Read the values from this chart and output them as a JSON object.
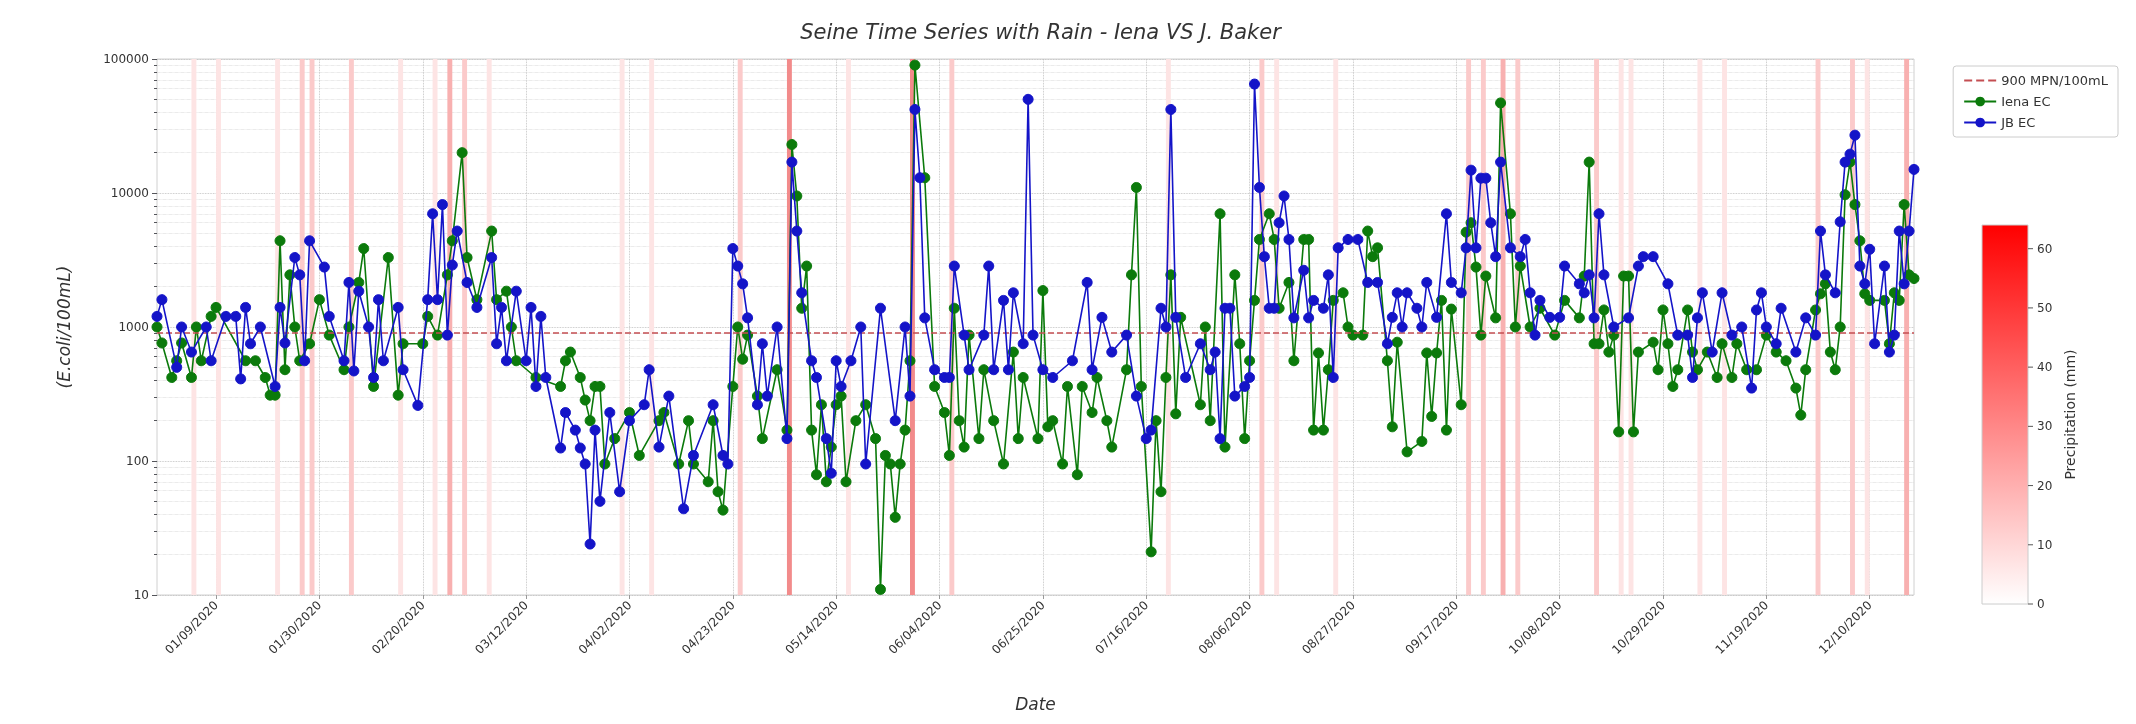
{
  "chart_data": {
    "type": "line",
    "title": "Seine Time Series with Rain - Iena VS J. Baker",
    "xlabel": "Date",
    "ylabel": "(E.coli/100mL)",
    "clabel": "Precipitation (mm)",
    "clim": [
      0,
      64
    ],
    "cticks": [
      0,
      10,
      20,
      30,
      40,
      50,
      60
    ],
    "log": "y",
    "grid": true,
    "legend": "top right",
    "marker": "circle",
    "line_style": "solid",
    "xlim": [
      "2019-12-28",
      "2020-12-19"
    ],
    "xticks": [
      {
        "value": "2020-01-09",
        "label": "01/09/2020"
      },
      {
        "value": "2020-01-30",
        "label": "01/30/2020"
      },
      {
        "value": "2020-02-20",
        "label": "02/20/2020"
      },
      {
        "value": "2020-03-12",
        "label": "03/12/2020"
      },
      {
        "value": "2020-04-02",
        "label": "04/02/2020"
      },
      {
        "value": "2020-04-23",
        "label": "04/23/2020"
      },
      {
        "value": "2020-05-14",
        "label": "05/14/2020"
      },
      {
        "value": "2020-06-04",
        "label": "06/04/2020"
      },
      {
        "value": "2020-06-25",
        "label": "06/25/2020"
      },
      {
        "value": "2020-07-16",
        "label": "07/16/2020"
      },
      {
        "value": "2020-08-06",
        "label": "08/06/2020"
      },
      {
        "value": "2020-08-27",
        "label": "08/27/2020"
      },
      {
        "value": "2020-09-17",
        "label": "09/17/2020"
      },
      {
        "value": "2020-10-08",
        "label": "10/08/2020"
      },
      {
        "value": "2020-10-29",
        "label": "10/29/2020"
      },
      {
        "value": "2020-11-19",
        "label": "11/19/2020"
      },
      {
        "value": "2020-12-10",
        "label": "12/10/2020"
      }
    ],
    "ylim": [
      10,
      100000
    ],
    "yticks": [
      10,
      100,
      1000,
      10000,
      100000
    ],
    "ref_lines": [
      {
        "axis": "y",
        "value": 900,
        "label": "900 MPN/100mL",
        "color": "#c44e52",
        "line_style": "dashed"
      }
    ],
    "bands": [
      {
        "axis": "x",
        "from": "2020-01-04",
        "to": "2020-01-05",
        "color": "#fde4e4"
      },
      {
        "axis": "x",
        "from": "2020-01-09",
        "to": "2020-01-10",
        "color": "#fde4e4"
      },
      {
        "axis": "x",
        "from": "2020-01-21",
        "to": "2020-01-22",
        "color": "#fde4e4"
      },
      {
        "axis": "x",
        "from": "2020-01-26",
        "to": "2020-01-27",
        "color": "#fbcaca"
      },
      {
        "axis": "x",
        "from": "2020-01-28",
        "to": "2020-01-29",
        "color": "#fbcaca"
      },
      {
        "axis": "x",
        "from": "2020-02-05",
        "to": "2020-02-06",
        "color": "#fbcaca"
      },
      {
        "axis": "x",
        "from": "2020-02-15",
        "to": "2020-02-16",
        "color": "#fde4e4"
      },
      {
        "axis": "x",
        "from": "2020-02-22",
        "to": "2020-02-23",
        "color": "#fde4e4"
      },
      {
        "axis": "x",
        "from": "2020-02-25",
        "to": "2020-02-26",
        "color": "#f8b0b0"
      },
      {
        "axis": "x",
        "from": "2020-02-28",
        "to": "2020-02-29",
        "color": "#fbcaca"
      },
      {
        "axis": "x",
        "from": "2020-03-04",
        "to": "2020-03-05",
        "color": "#fde4e4"
      },
      {
        "axis": "x",
        "from": "2020-03-31",
        "to": "2020-04-01",
        "color": "#fde4e4"
      },
      {
        "axis": "x",
        "from": "2020-04-06",
        "to": "2020-04-07",
        "color": "#fde4e4"
      },
      {
        "axis": "x",
        "from": "2020-04-24",
        "to": "2020-04-25",
        "color": "#fbcaca"
      },
      {
        "axis": "x",
        "from": "2020-05-04",
        "to": "2020-05-05",
        "color": "#f28b8b"
      },
      {
        "axis": "x",
        "from": "2020-05-16",
        "to": "2020-05-17",
        "color": "#fde4e4"
      },
      {
        "axis": "x",
        "from": "2020-05-29",
        "to": "2020-05-30",
        "color": "#f28b8b"
      },
      {
        "axis": "x",
        "from": "2020-06-06",
        "to": "2020-06-07",
        "color": "#fbcaca"
      },
      {
        "axis": "x",
        "from": "2020-07-20",
        "to": "2020-07-21",
        "color": "#fde4e4"
      },
      {
        "axis": "x",
        "from": "2020-08-08",
        "to": "2020-08-09",
        "color": "#fbcaca"
      },
      {
        "axis": "x",
        "from": "2020-08-11",
        "to": "2020-08-12",
        "color": "#fde4e4"
      },
      {
        "axis": "x",
        "from": "2020-08-23",
        "to": "2020-08-24",
        "color": "#fde4e4"
      },
      {
        "axis": "x",
        "from": "2020-09-19",
        "to": "2020-09-20",
        "color": "#fbcaca"
      },
      {
        "axis": "x",
        "from": "2020-09-22",
        "to": "2020-09-23",
        "color": "#fbcaca"
      },
      {
        "axis": "x",
        "from": "2020-09-26",
        "to": "2020-09-27",
        "color": "#f8b0b0"
      },
      {
        "axis": "x",
        "from": "2020-09-29",
        "to": "2020-09-30",
        "color": "#fbcaca"
      },
      {
        "axis": "x",
        "from": "2020-10-15",
        "to": "2020-10-16",
        "color": "#fbcaca"
      },
      {
        "axis": "x",
        "from": "2020-10-20",
        "to": "2020-10-21",
        "color": "#fde4e4"
      },
      {
        "axis": "x",
        "from": "2020-10-22",
        "to": "2020-10-23",
        "color": "#fde4e4"
      },
      {
        "axis": "x",
        "from": "2020-11-05",
        "to": "2020-11-06",
        "color": "#fde4e4"
      },
      {
        "axis": "x",
        "from": "2020-11-10",
        "to": "2020-11-11",
        "color": "#fde4e4"
      },
      {
        "axis": "x",
        "from": "2020-11-29",
        "to": "2020-11-30",
        "color": "#fbcaca"
      },
      {
        "axis": "x",
        "from": "2020-12-06",
        "to": "2020-12-07",
        "color": "#fbcaca"
      },
      {
        "axis": "x",
        "from": "2020-12-09",
        "to": "2020-12-10",
        "color": "#fde4e4"
      },
      {
        "axis": "x",
        "from": "2020-12-17",
        "to": "2020-12-18",
        "color": "#f8b0b0"
      }
    ],
    "series": [
      {
        "name": "Iena EC",
        "color": "#0b7a0b",
        "x": [
          "2019-12-28",
          "2019-12-29",
          "2019-12-31",
          "2020-01-01",
          "2020-01-02",
          "2020-01-04",
          "2020-01-05",
          "2020-01-06",
          "2020-01-08",
          "2020-01-09",
          "2020-01-15",
          "2020-01-17",
          "2020-01-19",
          "2020-01-20",
          "2020-01-21",
          "2020-01-22",
          "2020-01-23",
          "2020-01-24",
          "2020-01-25",
          "2020-01-26",
          "2020-01-28",
          "2020-01-30",
          "2020-02-01",
          "2020-02-04",
          "2020-02-05",
          "2020-02-07",
          "2020-02-08",
          "2020-02-10",
          "2020-02-13",
          "2020-02-15",
          "2020-02-16",
          "2020-02-20",
          "2020-02-21",
          "2020-02-23",
          "2020-02-25",
          "2020-02-26",
          "2020-02-28",
          "2020-02-29",
          "2020-03-02",
          "2020-03-05",
          "2020-03-06",
          "2020-03-08",
          "2020-03-09",
          "2020-03-10",
          "2020-03-14",
          "2020-03-19",
          "2020-03-20",
          "2020-03-21",
          "2020-03-23",
          "2020-03-24",
          "2020-03-25",
          "2020-03-26",
          "2020-03-27",
          "2020-03-28",
          "2020-03-30",
          "2020-04-02",
          "2020-04-04",
          "2020-04-08",
          "2020-04-09",
          "2020-04-12",
          "2020-04-14",
          "2020-04-15",
          "2020-04-18",
          "2020-04-19",
          "2020-04-20",
          "2020-04-21",
          "2020-04-23",
          "2020-04-24",
          "2020-04-25",
          "2020-04-26",
          "2020-04-28",
          "2020-04-29",
          "2020-05-02",
          "2020-05-04",
          "2020-05-05",
          "2020-05-06",
          "2020-05-07",
          "2020-05-08",
          "2020-05-09",
          "2020-05-10",
          "2020-05-11",
          "2020-05-12",
          "2020-05-13",
          "2020-05-14",
          "2020-05-15",
          "2020-05-16",
          "2020-05-18",
          "2020-05-20",
          "2020-05-22",
          "2020-05-23",
          "2020-05-24",
          "2020-05-25",
          "2020-05-26",
          "2020-05-27",
          "2020-05-28",
          "2020-05-29",
          "2020-05-30",
          "2020-06-01",
          "2020-06-03",
          "2020-06-05",
          "2020-06-06",
          "2020-06-07",
          "2020-06-08",
          "2020-06-09",
          "2020-06-10",
          "2020-06-12",
          "2020-06-13",
          "2020-06-15",
          "2020-06-17",
          "2020-06-19",
          "2020-06-20",
          "2020-06-21",
          "2020-06-24",
          "2020-06-25",
          "2020-06-26",
          "2020-06-27",
          "2020-06-29",
          "2020-06-30",
          "2020-07-02",
          "2020-07-03",
          "2020-07-05",
          "2020-07-06",
          "2020-07-08",
          "2020-07-09",
          "2020-07-12",
          "2020-07-13",
          "2020-07-14",
          "2020-07-15",
          "2020-07-17",
          "2020-07-18",
          "2020-07-19",
          "2020-07-20",
          "2020-07-21",
          "2020-07-22",
          "2020-07-23",
          "2020-07-27",
          "2020-07-28",
          "2020-07-29",
          "2020-07-31",
          "2020-08-01",
          "2020-08-03",
          "2020-08-04",
          "2020-08-05",
          "2020-08-06",
          "2020-08-07",
          "2020-08-08",
          "2020-08-10",
          "2020-08-11",
          "2020-08-12",
          "2020-08-14",
          "2020-08-15",
          "2020-08-17",
          "2020-08-18",
          "2020-08-19",
          "2020-08-20",
          "2020-08-21",
          "2020-08-22",
          "2020-08-23",
          "2020-08-25",
          "2020-08-26",
          "2020-08-27",
          "2020-08-29",
          "2020-08-30",
          "2020-08-31",
          "2020-09-01",
          "2020-09-03",
          "2020-09-04",
          "2020-09-05",
          "2020-09-07",
          "2020-09-10",
          "2020-09-11",
          "2020-09-12",
          "2020-09-13",
          "2020-09-14",
          "2020-09-15",
          "2020-09-16",
          "2020-09-18",
          "2020-09-19",
          "2020-09-20",
          "2020-09-21",
          "2020-09-22",
          "2020-09-23",
          "2020-09-25",
          "2020-09-26",
          "2020-09-28",
          "2020-09-29",
          "2020-09-30",
          "2020-10-02",
          "2020-10-04",
          "2020-10-07",
          "2020-10-09",
          "2020-10-12",
          "2020-10-13",
          "2020-10-14",
          "2020-10-15",
          "2020-10-16",
          "2020-10-17",
          "2020-10-18",
          "2020-10-19",
          "2020-10-20",
          "2020-10-21",
          "2020-10-22",
          "2020-10-23",
          "2020-10-24",
          "2020-10-27",
          "2020-10-28",
          "2020-10-29",
          "2020-10-30",
          "2020-10-31",
          "2020-11-01",
          "2020-11-03",
          "2020-11-04",
          "2020-11-05",
          "2020-11-07",
          "2020-11-09",
          "2020-11-10",
          "2020-11-12",
          "2020-11-13",
          "2020-11-15",
          "2020-11-17",
          "2020-11-19",
          "2020-11-21",
          "2020-11-23",
          "2020-11-25",
          "2020-11-26",
          "2020-11-27",
          "2020-11-29",
          "2020-11-30",
          "2020-12-01",
          "2020-12-02",
          "2020-12-03",
          "2020-12-04",
          "2020-12-05",
          "2020-12-06",
          "2020-12-07",
          "2020-12-08",
          "2020-12-09",
          "2020-12-10",
          "2020-12-13",
          "2020-12-14",
          "2020-12-15",
          "2020-12-16",
          "2020-12-17",
          "2020-12-18",
          "2020-12-19"
        ],
        "values": [
          1000,
          760,
          420,
          560,
          760,
          420,
          1000,
          560,
          1200,
          1400,
          560,
          560,
          420,
          310,
          310,
          4400,
          480,
          2450,
          1000,
          560,
          750,
          1600,
          870,
          480,
          1000,
          2150,
          3850,
          360,
          3300,
          310,
          750,
          750,
          1200,
          870,
          2450,
          4400,
          20000,
          3300,
          1600,
          5200,
          1600,
          1850,
          1000,
          560,
          420,
          360,
          560,
          650,
          420,
          285,
          200,
          360,
          360,
          95,
          147,
          230,
          110,
          200,
          230,
          95,
          200,
          95,
          70,
          200,
          59,
          43,
          360,
          1000,
          575,
          870,
          305,
          147,
          480,
          170,
          23000,
          9500,
          1380,
          2850,
          170,
          79,
          263,
          70,
          127,
          263,
          305,
          70,
          200,
          263,
          147,
          11,
          110,
          95,
          38,
          95,
          170,
          560,
          90000,
          13000,
          360,
          230,
          110,
          1380,
          200,
          127,
          870,
          147,
          480,
          200,
          95,
          650,
          147,
          420,
          147,
          1870,
          180,
          200,
          95,
          360,
          79,
          360,
          230,
          420,
          200,
          127,
          480,
          2450,
          11000,
          360,
          21,
          200,
          59,
          420,
          2450,
          225,
          1180,
          263,
          1000,
          200,
          7000,
          127,
          2450,
          750,
          147,
          560,
          1580,
          4500,
          7000,
          4500,
          1380,
          2150,
          560,
          4500,
          4500,
          170,
          640,
          170,
          480,
          1580,
          1800,
          1000,
          870,
          870,
          5200,
          3350,
          3900,
          560,
          180,
          770,
          117,
          140,
          640,
          215,
          640,
          1580,
          170,
          1360,
          263,
          5100,
          6000,
          2800,
          870,
          2400,
          1170,
          47000,
          7000,
          1000,
          2850,
          1000,
          1380,
          870,
          1580,
          1170,
          2400,
          17000,
          750,
          750,
          1340,
          650,
          870,
          165,
          2400,
          2400,
          165,
          650,
          770,
          480,
          1340,
          750,
          360,
          480,
          1340,
          650,
          480,
          650,
          420,
          750,
          420,
          750,
          480,
          480,
          870,
          650,
          560,
          350,
          220,
          480,
          1340,
          1770,
          2100,
          650,
          480,
          1000,
          9700,
          17000,
          8200,
          4400,
          1770,
          1580,
          1580,
          750,
          1800,
          1580,
          8200,
          2450,
          2300
        ]
      },
      {
        "name": "JB EC",
        "color": "#1414c8",
        "x": [
          "2019-12-28",
          "2019-12-29",
          "2020-01-01",
          "2020-01-02",
          "2020-01-04",
          "2020-01-07",
          "2020-01-08",
          "2020-01-11",
          "2020-01-13",
          "2020-01-14",
          "2020-01-15",
          "2020-01-16",
          "2020-01-18",
          "2020-01-21",
          "2020-01-22",
          "2020-01-23",
          "2020-01-25",
          "2020-01-26",
          "2020-01-27",
          "2020-01-28",
          "2020-01-31",
          "2020-02-01",
          "2020-02-04",
          "2020-02-05",
          "2020-02-06",
          "2020-02-07",
          "2020-02-09",
          "2020-02-10",
          "2020-02-11",
          "2020-02-12",
          "2020-02-15",
          "2020-02-16",
          "2020-02-19",
          "2020-02-21",
          "2020-02-22",
          "2020-02-23",
          "2020-02-24",
          "2020-02-25",
          "2020-02-26",
          "2020-02-27",
          "2020-02-29",
          "2020-03-02",
          "2020-03-05",
          "2020-03-06",
          "2020-03-07",
          "2020-03-08",
          "2020-03-10",
          "2020-03-12",
          "2020-03-13",
          "2020-03-14",
          "2020-03-15",
          "2020-03-16",
          "2020-03-19",
          "2020-03-20",
          "2020-03-22",
          "2020-03-23",
          "2020-03-24",
          "2020-03-25",
          "2020-03-26",
          "2020-03-27",
          "2020-03-29",
          "2020-03-31",
          "2020-04-02",
          "2020-04-05",
          "2020-04-06",
          "2020-04-08",
          "2020-04-10",
          "2020-04-13",
          "2020-04-15",
          "2020-04-19",
          "2020-04-21",
          "2020-04-22",
          "2020-04-23",
          "2020-04-24",
          "2020-04-25",
          "2020-04-26",
          "2020-04-28",
          "2020-04-29",
          "2020-04-30",
          "2020-05-02",
          "2020-05-04",
          "2020-05-05",
          "2020-05-06",
          "2020-05-07",
          "2020-05-09",
          "2020-05-10",
          "2020-05-12",
          "2020-05-13",
          "2020-05-14",
          "2020-05-15",
          "2020-05-17",
          "2020-05-19",
          "2020-05-20",
          "2020-05-23",
          "2020-05-26",
          "2020-05-28",
          "2020-05-29",
          "2020-05-30",
          "2020-05-31",
          "2020-06-01",
          "2020-06-03",
          "2020-06-05",
          "2020-06-06",
          "2020-06-07",
          "2020-06-09",
          "2020-06-10",
          "2020-06-13",
          "2020-06-14",
          "2020-06-15",
          "2020-06-17",
          "2020-06-18",
          "2020-06-19",
          "2020-06-21",
          "2020-06-22",
          "2020-06-23",
          "2020-06-25",
          "2020-06-27",
          "2020-07-01",
          "2020-07-04",
          "2020-07-05",
          "2020-07-07",
          "2020-07-09",
          "2020-07-12",
          "2020-07-14",
          "2020-07-16",
          "2020-07-17",
          "2020-07-19",
          "2020-07-20",
          "2020-07-21",
          "2020-07-22",
          "2020-07-24",
          "2020-07-27",
          "2020-07-29",
          "2020-07-30",
          "2020-07-31",
          "2020-08-01",
          "2020-08-02",
          "2020-08-03",
          "2020-08-05",
          "2020-08-06",
          "2020-08-07",
          "2020-08-08",
          "2020-08-09",
          "2020-08-10",
          "2020-08-11",
          "2020-08-12",
          "2020-08-13",
          "2020-08-14",
          "2020-08-15",
          "2020-08-17",
          "2020-08-18",
          "2020-08-19",
          "2020-08-21",
          "2020-08-22",
          "2020-08-23",
          "2020-08-24",
          "2020-08-26",
          "2020-08-28",
          "2020-08-30",
          "2020-09-01",
          "2020-09-03",
          "2020-09-04",
          "2020-09-05",
          "2020-09-06",
          "2020-09-07",
          "2020-09-09",
          "2020-09-10",
          "2020-09-11",
          "2020-09-13",
          "2020-09-15",
          "2020-09-16",
          "2020-09-18",
          "2020-09-19",
          "2020-09-20",
          "2020-09-21",
          "2020-09-22",
          "2020-09-23",
          "2020-09-24",
          "2020-09-25",
          "2020-09-26",
          "2020-09-28",
          "2020-09-30",
          "2020-10-01",
          "2020-10-02",
          "2020-10-03",
          "2020-10-04",
          "2020-10-06",
          "2020-10-08",
          "2020-10-09",
          "2020-10-12",
          "2020-10-13",
          "2020-10-14",
          "2020-10-15",
          "2020-10-16",
          "2020-10-17",
          "2020-10-19",
          "2020-10-22",
          "2020-10-24",
          "2020-10-25",
          "2020-10-27",
          "2020-10-30",
          "2020-11-01",
          "2020-11-03",
          "2020-11-04",
          "2020-11-05",
          "2020-11-06",
          "2020-11-08",
          "2020-11-10",
          "2020-11-12",
          "2020-11-14",
          "2020-11-16",
          "2020-11-17",
          "2020-11-18",
          "2020-11-19",
          "2020-11-21",
          "2020-11-22",
          "2020-11-25",
          "2020-11-27",
          "2020-11-29",
          "2020-11-30",
          "2020-12-01",
          "2020-12-03",
          "2020-12-04",
          "2020-12-05",
          "2020-12-06",
          "2020-12-07",
          "2020-12-08",
          "2020-12-09",
          "2020-12-10",
          "2020-12-11",
          "2020-12-13",
          "2020-12-14",
          "2020-12-15",
          "2020-12-16",
          "2020-12-17",
          "2020-12-18",
          "2020-12-19"
        ],
        "values": [
          1200,
          1600,
          500,
          1000,
          650,
          1000,
          560,
          1200,
          1200,
          410,
          1400,
          750,
          1000,
          360,
          1400,
          760,
          3300,
          2450,
          560,
          4400,
          2800,
          1200,
          560,
          2150,
          470,
          1850,
          1000,
          420,
          1600,
          560,
          1400,
          480,
          260,
          1600,
          7000,
          1600,
          8200,
          870,
          2900,
          5200,
          2150,
          1400,
          3300,
          750,
          1400,
          560,
          1850,
          560,
          1400,
          360,
          1200,
          420,
          125,
          230,
          170,
          125,
          95,
          24,
          170,
          50,
          230,
          59,
          200,
          263,
          480,
          127,
          305,
          44,
          110,
          263,
          110,
          95,
          3850,
          2850,
          2100,
          1170,
          263,
          750,
          305,
          1000,
          147,
          17000,
          5200,
          1800,
          560,
          420,
          147,
          81,
          560,
          360,
          560,
          1000,
          95,
          1380,
          200,
          1000,
          305,
          42000,
          13000,
          1170,
          480,
          420,
          420,
          2850,
          870,
          480,
          870,
          2850,
          480,
          1580,
          480,
          1800,
          750,
          50000,
          870,
          480,
          420,
          560,
          2150,
          480,
          1180,
          650,
          870,
          305,
          147,
          170,
          1380,
          1000,
          42000,
          1180,
          420,
          750,
          480,
          650,
          147,
          1380,
          1380,
          305,
          360,
          420,
          65000,
          11000,
          3350,
          1380,
          1380,
          6000,
          9500,
          4500,
          1170,
          2650,
          1170,
          1580,
          1380,
          2450,
          420,
          3900,
          4500,
          4500,
          2150,
          2150,
          750,
          1180,
          1800,
          1000,
          1800,
          1380,
          1000,
          2150,
          1180,
          7000,
          2150,
          1800,
          3900,
          14800,
          3900,
          12900,
          12900,
          6000,
          3350,
          17000,
          3900,
          3350,
          4500,
          1800,
          870,
          1580,
          1180,
          1180,
          2850,
          2100,
          1800,
          2450,
          1170,
          7000,
          2450,
          1000,
          1170,
          2850,
          3350,
          3350,
          2100,
          870,
          870,
          420,
          1170,
          1800,
          650,
          1800,
          870,
          1000,
          350,
          1340,
          1800,
          1000,
          750,
          1380,
          650,
          1170,
          870,
          5200,
          2450,
          1800,
          6100,
          17000,
          19500,
          27000,
          2850,
          2100,
          3800,
          750,
          2850,
          650,
          870,
          5200,
          2100,
          5200,
          15000
        ]
      }
    ]
  }
}
